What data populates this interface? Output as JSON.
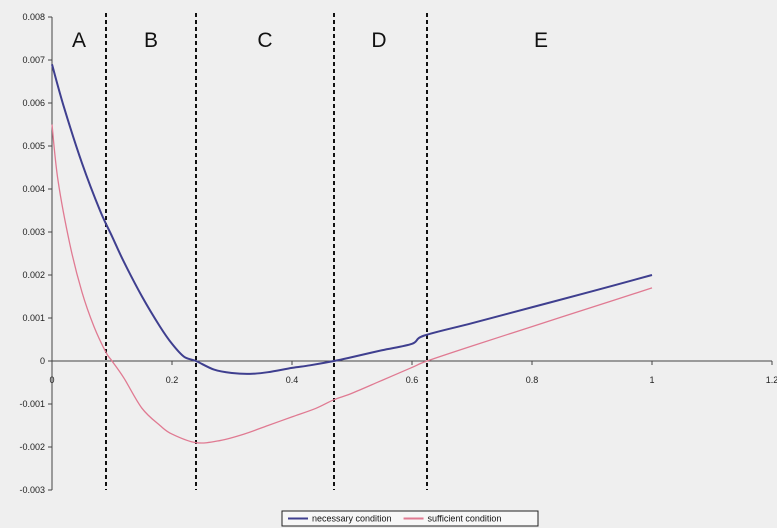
{
  "chart_data": {
    "type": "line",
    "title": "",
    "xlabel": "",
    "ylabel": "",
    "xlim": [
      0,
      1.2
    ],
    "ylim": [
      -0.003,
      0.008
    ],
    "x_ticks": [
      {
        "value": 0,
        "label": "0"
      },
      {
        "value": 0.2,
        "label": "0.2"
      },
      {
        "value": 0.4,
        "label": "0.4"
      },
      {
        "value": 0.6,
        "label": "0.6"
      },
      {
        "value": 0.8,
        "label": "0.8"
      },
      {
        "value": 1,
        "label": "1"
      },
      {
        "value": 1.2,
        "label": "1.2"
      }
    ],
    "y_ticks": [
      {
        "value": 0.008,
        "label": "0.008"
      },
      {
        "value": 0.007,
        "label": "0.007"
      },
      {
        "value": 0.006,
        "label": "0.006"
      },
      {
        "value": 0.005,
        "label": "0.005"
      },
      {
        "value": 0.004,
        "label": "0.004"
      },
      {
        "value": 0.003,
        "label": "0.003"
      },
      {
        "value": 0.002,
        "label": "0.002"
      },
      {
        "value": 0.001,
        "label": "0.001"
      },
      {
        "value": 0,
        "label": "0"
      },
      {
        "value": -0.001,
        "label": "-0.001"
      },
      {
        "value": -0.002,
        "label": "-0.002"
      },
      {
        "value": -0.003,
        "label": "-0.003"
      }
    ],
    "grid": false,
    "legend": "bottom-center",
    "series": [
      {
        "name": "necessary condition",
        "color": "#3f3f8f",
        "x": [
          0,
          0.02,
          0.05,
          0.08,
          0.1,
          0.12,
          0.15,
          0.18,
          0.2,
          0.22,
          0.24,
          0.27,
          0.3,
          0.33,
          0.36,
          0.4,
          0.43,
          0.47,
          0.5,
          0.55,
          0.6,
          0.62,
          0.7,
          0.8,
          0.9,
          1.0
        ],
        "y": [
          0.0069,
          0.0059,
          0.0046,
          0.0035,
          0.0029,
          0.0023,
          0.0015,
          0.0008,
          0.0004,
          0.0001,
          0.0,
          -0.0002,
          -0.00028,
          -0.0003,
          -0.00026,
          -0.00016,
          -0.0001,
          0.0,
          9e-05,
          0.00025,
          0.0004,
          0.00059,
          0.00088,
          0.00125,
          0.00162,
          0.002
        ]
      },
      {
        "name": "sufficient condition",
        "color": "#e07a92",
        "x": [
          0,
          0.01,
          0.03,
          0.05,
          0.07,
          0.09,
          0.1,
          0.12,
          0.15,
          0.18,
          0.2,
          0.24,
          0.28,
          0.32,
          0.36,
          0.4,
          0.44,
          0.47,
          0.5,
          0.55,
          0.6,
          0.625,
          0.7,
          0.8,
          0.9,
          1.0
        ],
        "y": [
          0.0055,
          0.0042,
          0.0027,
          0.0016,
          0.0008,
          0.0002,
          0.0,
          -0.0004,
          -0.0011,
          -0.0015,
          -0.0017,
          -0.0019,
          -0.00185,
          -0.0017,
          -0.0015,
          -0.0013,
          -0.0011,
          -0.0009,
          -0.00075,
          -0.00045,
          -0.00015,
          0.0,
          0.00035,
          0.0008,
          0.00125,
          0.0017
        ]
      }
    ],
    "vlines": [
      0.09,
      0.24,
      0.47,
      0.625
    ],
    "regions": [
      {
        "label": "A",
        "x": 0.045
      },
      {
        "label": "B",
        "x": 0.165
      },
      {
        "label": "C",
        "x": 0.355
      },
      {
        "label": "D",
        "x": 0.545
      },
      {
        "label": "E",
        "x": 0.815
      }
    ],
    "region_label_y": 0.0073
  }
}
